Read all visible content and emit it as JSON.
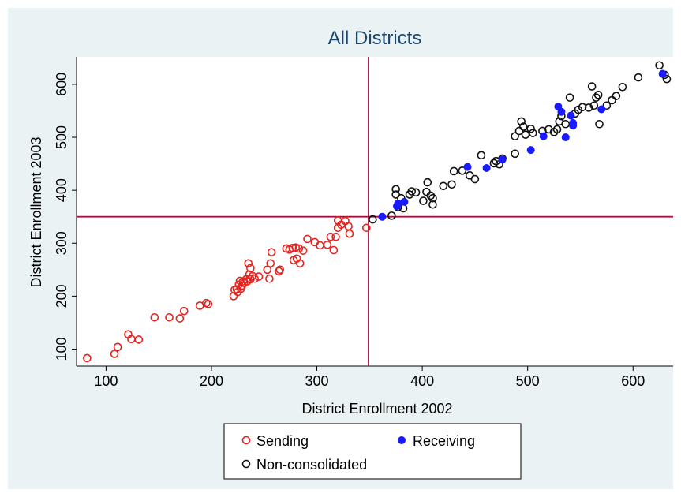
{
  "chart_data": {
    "type": "scatter",
    "title": "All Districts",
    "xlabel": "District Enrollment 2002",
    "ylabel": "District Enrollment 2003",
    "xlim": [
      72,
      638
    ],
    "ylim": [
      68,
      652
    ],
    "xticks": [
      100,
      200,
      300,
      400,
      500,
      600
    ],
    "yticks": [
      100,
      200,
      300,
      400,
      500,
      600
    ],
    "reference_lines": {
      "x": 349,
      "y": 350
    },
    "grid": false,
    "legend_position": "bottom",
    "series": [
      {
        "name": "Sending",
        "marker": "hollow-circle",
        "color": "#e8231f",
        "points": [
          [
            82,
            83
          ],
          [
            108,
            91
          ],
          [
            111,
            104
          ],
          [
            121,
            128
          ],
          [
            124,
            119
          ],
          [
            131,
            118
          ],
          [
            146,
            160
          ],
          [
            160,
            160
          ],
          [
            170,
            158
          ],
          [
            174,
            172
          ],
          [
            189,
            182
          ],
          [
            195,
            187
          ],
          [
            197,
            185
          ],
          [
            221,
            200
          ],
          [
            222,
            212
          ],
          [
            224,
            213
          ],
          [
            225,
            208
          ],
          [
            226,
            222
          ],
          [
            227,
            229
          ],
          [
            228,
            214
          ],
          [
            229,
            220
          ],
          [
            230,
            228
          ],
          [
            231,
            225
          ],
          [
            233,
            232
          ],
          [
            234,
            228
          ],
          [
            235,
            262
          ],
          [
            236,
            241
          ],
          [
            237,
            253
          ],
          [
            237,
            232
          ],
          [
            239,
            238
          ],
          [
            241,
            233
          ],
          [
            245,
            237
          ],
          [
            253,
            250
          ],
          [
            255,
            233
          ],
          [
            256,
            262
          ],
          [
            257,
            283
          ],
          [
            264,
            247
          ],
          [
            265,
            250
          ],
          [
            271,
            290
          ],
          [
            274,
            288
          ],
          [
            277,
            291
          ],
          [
            278,
            268
          ],
          [
            280,
            292
          ],
          [
            281,
            271
          ],
          [
            283,
            290
          ],
          [
            284,
            262
          ],
          [
            287,
            286
          ],
          [
            291,
            308
          ],
          [
            298,
            302
          ],
          [
            303,
            296
          ],
          [
            310,
            297
          ],
          [
            313,
            312
          ],
          [
            316,
            287
          ],
          [
            318,
            312
          ],
          [
            320,
            343
          ],
          [
            320,
            329
          ],
          [
            323,
            335
          ],
          [
            327,
            342
          ],
          [
            330,
            332
          ],
          [
            331,
            318
          ],
          [
            347,
            329
          ]
        ]
      },
      {
        "name": "Receiving",
        "marker": "filled-circle",
        "color": "#1a1aff",
        "points": [
          [
            362,
            350
          ],
          [
            376,
            370
          ],
          [
            377,
            375
          ],
          [
            383,
            378
          ],
          [
            443,
            444
          ],
          [
            461,
            442
          ],
          [
            476,
            458
          ],
          [
            503,
            476
          ],
          [
            515,
            502
          ],
          [
            529,
            558
          ],
          [
            532,
            548
          ],
          [
            536,
            500
          ],
          [
            541,
            541
          ],
          [
            543,
            527
          ],
          [
            543,
            522
          ],
          [
            570,
            553
          ],
          [
            628,
            620
          ]
        ]
      },
      {
        "name": "Non-consolidated",
        "marker": "hollow-circle",
        "color": "#111111",
        "points": [
          [
            353,
            345
          ],
          [
            371,
            352
          ],
          [
            375,
            402
          ],
          [
            375,
            392
          ],
          [
            377,
            368
          ],
          [
            380,
            385
          ],
          [
            382,
            366
          ],
          [
            388,
            392
          ],
          [
            390,
            398
          ],
          [
            394,
            396
          ],
          [
            401,
            380
          ],
          [
            404,
            397
          ],
          [
            405,
            415
          ],
          [
            408,
            390
          ],
          [
            410,
            385
          ],
          [
            410,
            373
          ],
          [
            420,
            408
          ],
          [
            428,
            411
          ],
          [
            430,
            436
          ],
          [
            438,
            437
          ],
          [
            445,
            428
          ],
          [
            450,
            421
          ],
          [
            456,
            466
          ],
          [
            468,
            451
          ],
          [
            470,
            455
          ],
          [
            473,
            449
          ],
          [
            476,
            460
          ],
          [
            488,
            469
          ],
          [
            488,
            502
          ],
          [
            492,
            512
          ],
          [
            494,
            530
          ],
          [
            496,
            520
          ],
          [
            498,
            505
          ],
          [
            503,
            516
          ],
          [
            505,
            508
          ],
          [
            514,
            512
          ],
          [
            520,
            515
          ],
          [
            525,
            510
          ],
          [
            528,
            515
          ],
          [
            530,
            530
          ],
          [
            532,
            540
          ],
          [
            536,
            525
          ],
          [
            540,
            575
          ],
          [
            545,
            545
          ],
          [
            548,
            552
          ],
          [
            552,
            557
          ],
          [
            558,
            556
          ],
          [
            561,
            596
          ],
          [
            563,
            560
          ],
          [
            565,
            575
          ],
          [
            567,
            580
          ],
          [
            568,
            525
          ],
          [
            575,
            560
          ],
          [
            580,
            570
          ],
          [
            584,
            578
          ],
          [
            590,
            595
          ],
          [
            605,
            613
          ],
          [
            625,
            636
          ],
          [
            630,
            618
          ],
          [
            632,
            610
          ]
        ]
      }
    ]
  }
}
